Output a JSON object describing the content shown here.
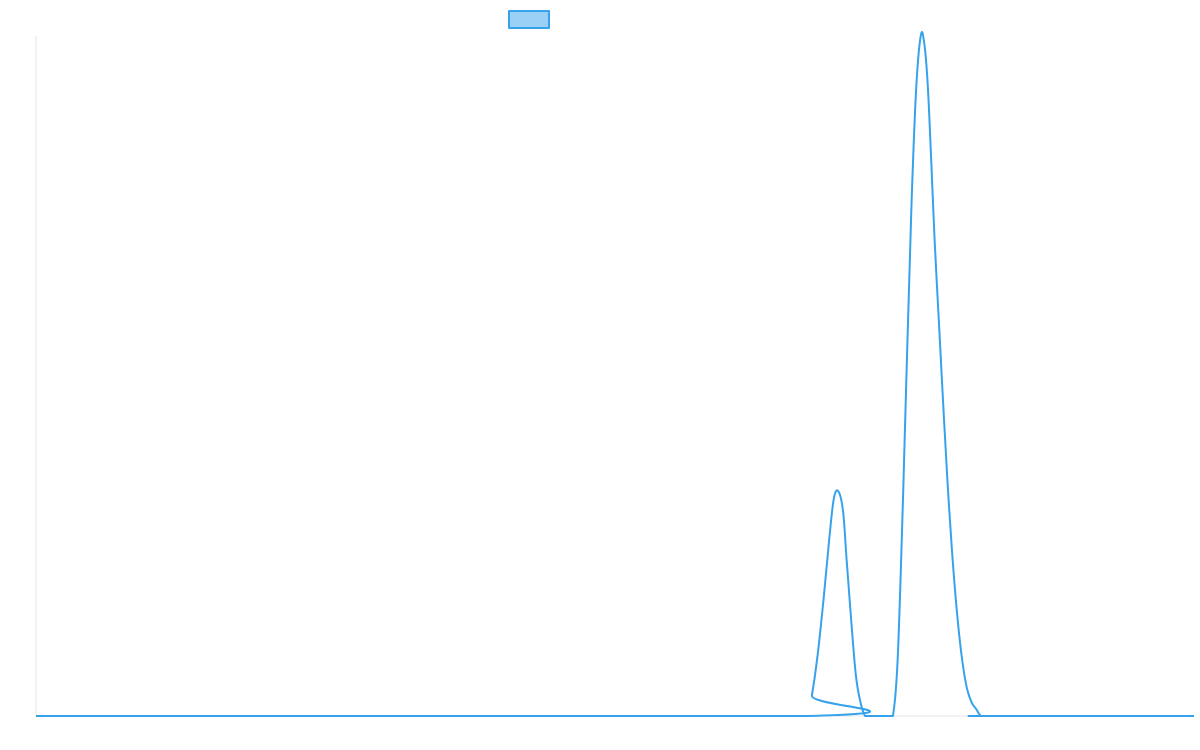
{
  "chart_data": {
    "type": "line",
    "title": "",
    "xlabel": "",
    "ylabel": "",
    "legend": {
      "position": "top-center",
      "label": ""
    },
    "grid": false,
    "colors": {
      "line": "#36a2eb",
      "legend_fill": "#9ad0f5",
      "axis": "#e6e6e6"
    },
    "x_range": [
      0,
      100
    ],
    "y_range": [
      0,
      100
    ],
    "series": [
      {
        "x": [
          0,
          66.6,
          67.0,
          67.5,
          68.0,
          68.5,
          68.9,
          69.3,
          69.7,
          70.0,
          70.4,
          70.8,
          71.2,
          71.6,
          72.0,
          72.4,
          72.8,
          73.2,
          73.6,
          74.0,
          74.4,
          74.8,
          75.2,
          75.6,
          76.0,
          76.4,
          76.7,
          77.0,
          77.3,
          77.6,
          78.0,
          78.4,
          78.8,
          79.2,
          79.6,
          80.0,
          80.4,
          80.8,
          81.2,
          81.6,
          82.1,
          100
        ],
        "y": [
          0,
          0,
          3,
          9,
          17,
          26,
          32,
          33,
          30,
          23,
          14,
          6,
          2,
          0,
          0,
          0,
          0,
          0,
          0,
          0,
          8,
          28,
          52,
          75,
          92,
          100,
          99,
          93,
          82,
          70,
          57,
          44,
          32,
          22,
          14,
          8,
          4,
          2,
          1,
          0,
          0,
          0
        ]
      }
    ]
  }
}
